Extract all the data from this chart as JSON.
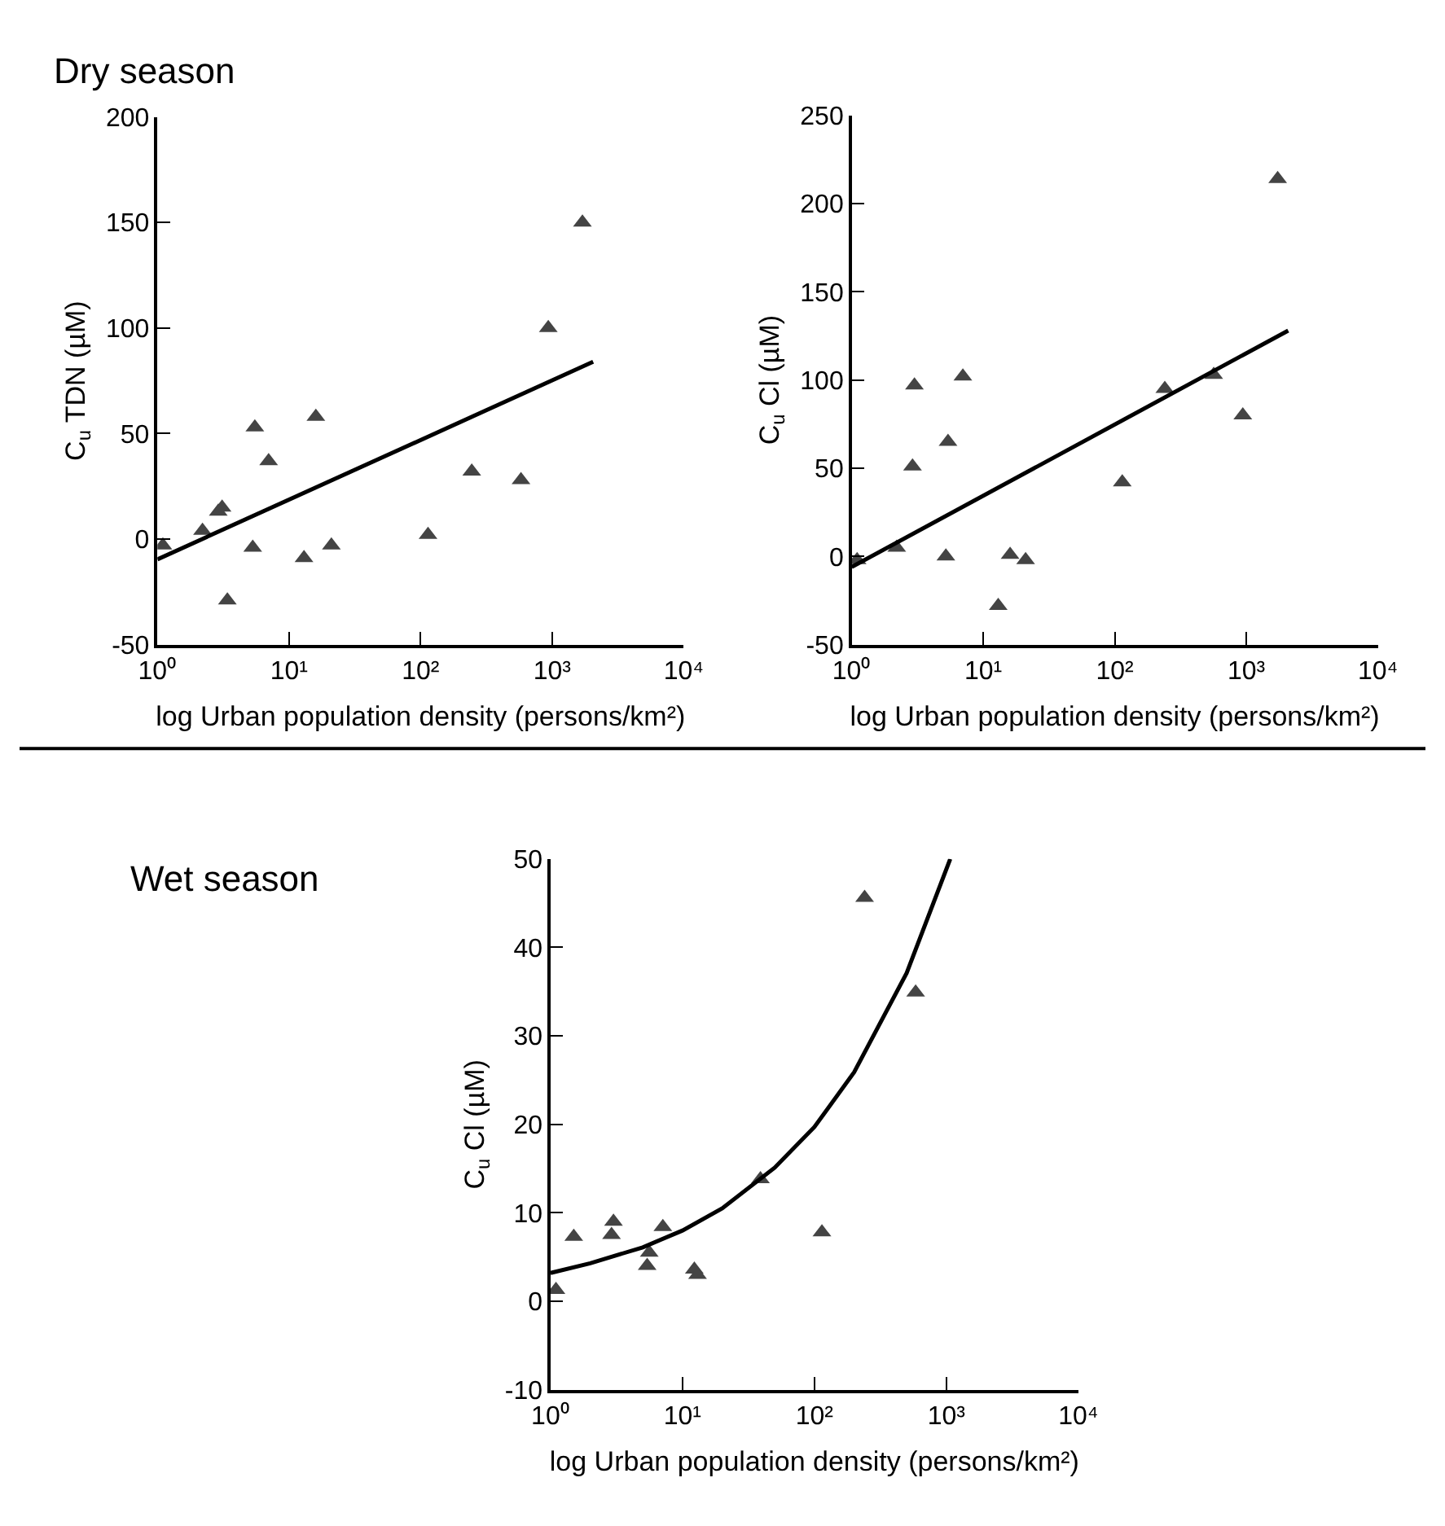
{
  "chart_data": [
    {
      "type": "scatter",
      "title": "Dry season",
      "xlabel": "log Urban population density (persons/km²)",
      "ylabel": "C$_{u}$ TDN (µM)",
      "log": "x",
      "xlim": [
        1,
        10000
      ],
      "xticks": [
        {
          "value": 1,
          "label": "10⁰"
        },
        {
          "value": 10,
          "label": "10¹"
        },
        {
          "value": 100,
          "label": "10²"
        },
        {
          "value": 1000,
          "label": "10³"
        },
        {
          "value": 10000,
          "label": "10⁴"
        }
      ],
      "ylim": [
        -50,
        200
      ],
      "yticks": [
        -50,
        0,
        50,
        100,
        150,
        200
      ],
      "series": [
        {
          "marker": "triangle",
          "color": "#444444",
          "x": [
            1.1,
            2.2,
            2.9,
            3.1,
            3.4,
            5.3,
            5.5,
            7.0,
            13,
            16,
            21,
            114,
            245,
            580,
            935,
            1700
          ],
          "values": [
            -3,
            4,
            13,
            15,
            -29,
            -4,
            53,
            37,
            -9,
            58,
            -3,
            2,
            32,
            28,
            100,
            150
          ]
        },
        {
          "type": "line",
          "marker": "none",
          "line_style": "solid",
          "color": "#000000",
          "x": [
            1,
            2050
          ],
          "values": [
            -9.6,
            84
          ]
        }
      ]
    },
    {
      "type": "scatter",
      "xlabel": "log Urban population density (persons/km²)",
      "ylabel": "C$_{u}$ Cl (µM)",
      "log": "x",
      "xlim": [
        1,
        10000
      ],
      "xticks": [
        {
          "value": 1,
          "label": "10⁰"
        },
        {
          "value": 10,
          "label": "10¹"
        },
        {
          "value": 100,
          "label": "10²"
        },
        {
          "value": 1000,
          "label": "10³"
        },
        {
          "value": 10000,
          "label": "10⁴"
        }
      ],
      "ylim": [
        -50,
        250
      ],
      "yticks": [
        -50,
        0,
        50,
        100,
        150,
        200,
        250
      ],
      "series": [
        {
          "marker": "triangle",
          "color": "#444444",
          "x": [
            1.1,
            2.2,
            2.9,
            3.0,
            5.2,
            5.4,
            7.0,
            13,
            16,
            21,
            114,
            240,
            565,
            940,
            1730
          ],
          "values": [
            -2,
            5,
            51,
            97,
            0,
            65,
            102,
            -28,
            1,
            -2,
            42,
            95,
            103,
            80,
            214
          ]
        },
        {
          "type": "line",
          "marker": "none",
          "line_style": "solid",
          "color": "#000000",
          "x": [
            1,
            2080
          ],
          "values": [
            -6,
            128
          ]
        }
      ]
    },
    {
      "type": "scatter",
      "title": "Wet season",
      "xlabel": "log Urban population density (persons/km²)",
      "ylabel": "C$_{u}$ Cl (µM)",
      "log": "x",
      "xlim": [
        1,
        10000
      ],
      "xticks": [
        {
          "value": 1,
          "label": "10⁰"
        },
        {
          "value": 10,
          "label": "10¹"
        },
        {
          "value": 100,
          "label": "10²"
        },
        {
          "value": 1000,
          "label": "10³"
        },
        {
          "value": 10000,
          "label": "10⁴"
        }
      ],
      "ylim": [
        -10,
        50
      ],
      "yticks": [
        -10,
        0,
        10,
        20,
        30,
        40,
        50
      ],
      "series": [
        {
          "marker": "triangle",
          "color": "#444444",
          "x": [
            1.1,
            1.5,
            2.9,
            3.0,
            5.4,
            5.6,
            7.1,
            12.3,
            13,
            39,
            114,
            240,
            585
          ],
          "values": [
            1.3,
            7.3,
            7.5,
            9,
            4,
            5.5,
            8.4,
            3.6,
            3,
            13.8,
            7.8,
            45.6,
            34.9
          ]
        },
        {
          "type": "line",
          "marker": "none",
          "line_style": "solid",
          "color": "#000000",
          "x": [
            1,
            2,
            5,
            10,
            20,
            50,
            100,
            200,
            500,
            1070
          ],
          "values": [
            3.2,
            4.3,
            6.1,
            8.0,
            10.5,
            15.1,
            19.7,
            25.9,
            37.1,
            50
          ]
        }
      ]
    }
  ]
}
